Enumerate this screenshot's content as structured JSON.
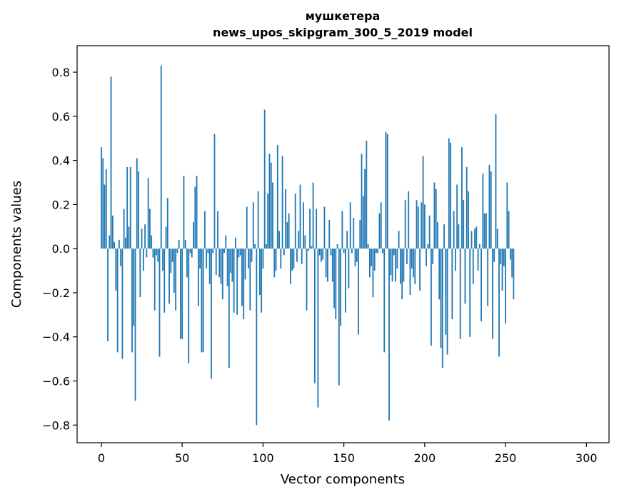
{
  "chart_data": {
    "type": "bar",
    "title": "мушкетера",
    "subtitle": "news_upos_skipgram_300_5_2019 model",
    "xlabel": "Vector components",
    "ylabel": "Components values",
    "xlim": [
      -15,
      314
    ],
    "ylim": [
      -0.88,
      0.92
    ],
    "xticks": [
      0,
      50,
      100,
      150,
      200,
      250,
      300
    ],
    "xtick_labels": [
      "0",
      "50",
      "100",
      "150",
      "200",
      "250",
      "300"
    ],
    "yticks": [
      -0.8,
      -0.6,
      -0.4,
      -0.2,
      0.0,
      0.2,
      0.4,
      0.6,
      0.8
    ],
    "ytick_labels": [
      "−0.8",
      "−0.6",
      "−0.4",
      "−0.2",
      "0.0",
      "0.2",
      "0.4",
      "0.6",
      "0.8"
    ],
    "bar_color": "#1f77b4",
    "series": [
      {
        "name": "мушкетера",
        "x_start": 0,
        "values": [
          0.46,
          0.41,
          0.29,
          0.36,
          -0.42,
          0.06,
          0.78,
          0.15,
          0.03,
          -0.19,
          -0.47,
          0.04,
          -0.08,
          -0.5,
          0.18,
          0.05,
          0.37,
          0.1,
          0.37,
          -0.47,
          -0.35,
          -0.69,
          0.41,
          0.35,
          -0.22,
          0.09,
          -0.1,
          0.11,
          -0.04,
          0.32,
          0.18,
          0.06,
          -0.04,
          -0.28,
          -0.03,
          -0.06,
          -0.49,
          0.83,
          -0.1,
          -0.29,
          0.1,
          0.23,
          -0.25,
          -0.11,
          -0.06,
          -0.2,
          -0.28,
          -0.02,
          0.04,
          -0.41,
          -0.41,
          0.33,
          0.04,
          -0.13,
          -0.52,
          -0.02,
          -0.04,
          0.12,
          0.28,
          0.33,
          -0.26,
          -0.09,
          -0.47,
          -0.47,
          0.17,
          -0.09,
          -0.02,
          -0.16,
          -0.59,
          -0.02,
          0.52,
          -0.12,
          0.17,
          -0.13,
          -0.16,
          -0.23,
          -0.02,
          0.06,
          -0.17,
          -0.54,
          -0.11,
          -0.15,
          -0.29,
          0.05,
          -0.3,
          -0.04,
          -0.03,
          -0.26,
          -0.32,
          -0.14,
          0.19,
          -0.09,
          -0.28,
          -0.06,
          0.21,
          0.02,
          -0.8,
          0.26,
          -0.21,
          -0.29,
          -0.09,
          0.63,
          0.02,
          0.25,
          0.43,
          0.39,
          0.3,
          -0.13,
          -0.1,
          0.47,
          0.08,
          -0.09,
          0.42,
          -0.03,
          0.27,
          0.12,
          0.16,
          -0.16,
          -0.1,
          -0.09,
          0.25,
          -0.06,
          0.08,
          0.29,
          -0.07,
          0.21,
          0.06,
          -0.28,
          -0.01,
          0.18,
          0.01,
          0.3,
          -0.61,
          0.18,
          -0.72,
          -0.03,
          -0.06,
          -0.05,
          0.19,
          -0.13,
          -0.15,
          0.13,
          -0.03,
          -0.15,
          -0.27,
          -0.32,
          0.02,
          -0.62,
          -0.35,
          0.17,
          -0.02,
          -0.29,
          0.08,
          -0.18,
          0.21,
          -0.02,
          0.14,
          -0.08,
          -0.06,
          -0.39,
          0.13,
          0.43,
          0.24,
          0.36,
          0.49,
          0.02,
          -0.13,
          -0.08,
          -0.22,
          -0.1,
          -0.02,
          -0.02,
          0.16,
          0.21,
          -0.02,
          -0.47,
          0.53,
          0.52,
          -0.78,
          -0.12,
          -0.15,
          -0.03,
          -0.15,
          -0.09,
          0.08,
          -0.16,
          -0.23,
          -0.15,
          0.22,
          -0.07,
          0.26,
          -0.21,
          -0.09,
          -0.13,
          -0.16,
          0.22,
          0.19,
          -0.19,
          0.21,
          0.42,
          0.2,
          -0.08,
          0.02,
          0.15,
          -0.44,
          -0.07,
          0.3,
          0.27,
          0.12,
          -0.23,
          -0.45,
          -0.54,
          0.11,
          -0.39,
          -0.48,
          0.5,
          0.48,
          -0.32,
          0.17,
          -0.1,
          0.29,
          0.11,
          -0.41,
          0.46,
          0.22,
          -0.25,
          0.37,
          0.26,
          -0.4,
          0.08,
          -0.16,
          0.09,
          0.1,
          -0.1,
          0.02,
          -0.33,
          0.34,
          0.16,
          0.16,
          -0.26,
          0.38,
          0.35,
          -0.41,
          -0.06,
          0.61,
          0.09,
          -0.49,
          -0.07,
          -0.19,
          -0.08,
          -0.34,
          0.3,
          0.17,
          -0.05,
          -0.13,
          -0.23
        ]
      }
    ]
  }
}
